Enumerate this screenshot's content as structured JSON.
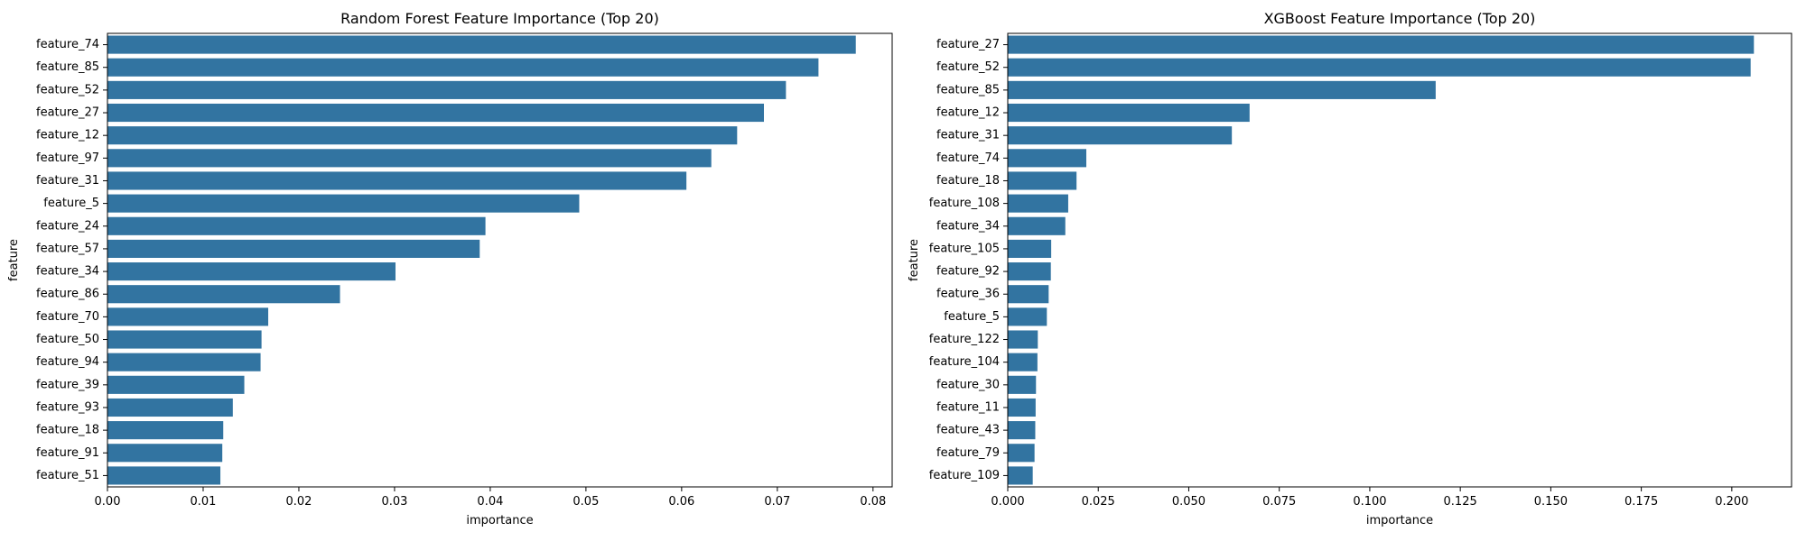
{
  "colors": {
    "bar": "#3274a1",
    "axis": "#000000",
    "background": "#ffffff"
  },
  "chart_data": [
    {
      "type": "bar",
      "orientation": "horizontal",
      "title": "Random Forest Feature Importance (Top 20)",
      "xlabel": "importance",
      "ylabel": "feature",
      "xlim": [
        0,
        0.082
      ],
      "xticks": [
        0.0,
        0.01,
        0.02,
        0.03,
        0.04,
        0.05,
        0.06,
        0.07,
        0.08
      ],
      "xtick_labels": [
        "0.00",
        "0.01",
        "0.02",
        "0.03",
        "0.04",
        "0.05",
        "0.06",
        "0.07",
        "0.08"
      ],
      "grid": false,
      "categories": [
        "feature_74",
        "feature_85",
        "feature_52",
        "feature_27",
        "feature_12",
        "feature_97",
        "feature_31",
        "feature_5",
        "feature_24",
        "feature_57",
        "feature_34",
        "feature_86",
        "feature_70",
        "feature_50",
        "feature_94",
        "feature_39",
        "feature_93",
        "feature_18",
        "feature_91",
        "feature_51"
      ],
      "values": [
        0.0782,
        0.0743,
        0.0709,
        0.0686,
        0.0658,
        0.0631,
        0.0605,
        0.0493,
        0.0395,
        0.0389,
        0.0301,
        0.0243,
        0.0168,
        0.0161,
        0.016,
        0.0143,
        0.0131,
        0.0121,
        0.012,
        0.0118
      ]
    },
    {
      "type": "bar",
      "orientation": "horizontal",
      "title": "XGBoost Feature Importance (Top 20)",
      "xlabel": "importance",
      "ylabel": "feature",
      "xlim": [
        0,
        0.2165
      ],
      "xticks": [
        0.0,
        0.025,
        0.05,
        0.075,
        0.1,
        0.125,
        0.15,
        0.175,
        0.2
      ],
      "xtick_labels": [
        "0.000",
        "0.025",
        "0.050",
        "0.075",
        "0.100",
        "0.125",
        "0.150",
        "0.175",
        "0.200"
      ],
      "grid": false,
      "categories": [
        "feature_27",
        "feature_52",
        "feature_85",
        "feature_12",
        "feature_31",
        "feature_74",
        "feature_18",
        "feature_108",
        "feature_34",
        "feature_105",
        "feature_92",
        "feature_36",
        "feature_5",
        "feature_122",
        "feature_104",
        "feature_30",
        "feature_11",
        "feature_43",
        "feature_79",
        "feature_109"
      ],
      "values": [
        0.2061,
        0.2052,
        0.1182,
        0.0668,
        0.0619,
        0.0217,
        0.019,
        0.0167,
        0.0159,
        0.012,
        0.0119,
        0.0113,
        0.0108,
        0.0083,
        0.0082,
        0.0078,
        0.0077,
        0.0076,
        0.0074,
        0.0069
      ]
    }
  ]
}
